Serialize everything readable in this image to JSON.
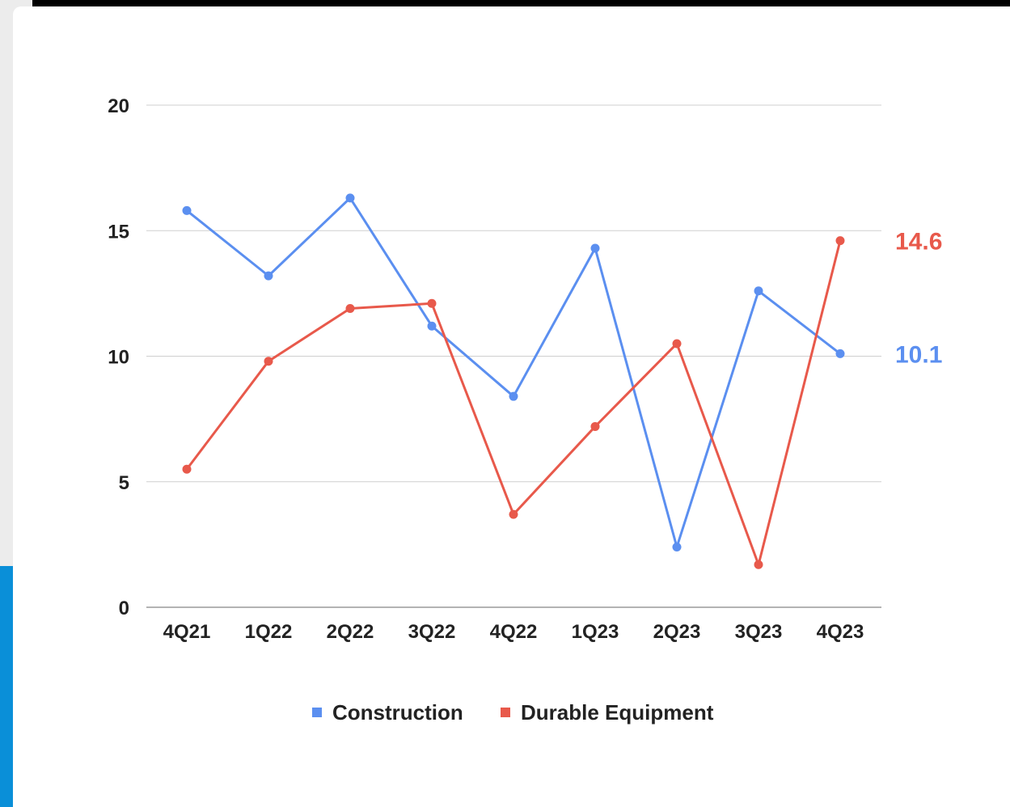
{
  "chart_data": {
    "type": "line",
    "categories": [
      "4Q21",
      "1Q22",
      "2Q22",
      "3Q22",
      "4Q22",
      "1Q23",
      "2Q23",
      "3Q23",
      "4Q23"
    ],
    "ylim": [
      0,
      20
    ],
    "yticks": [
      0,
      5,
      10,
      15,
      20
    ],
    "grid": true,
    "legend_position": "bottom",
    "series": [
      {
        "name": "Construction",
        "color": "#5b8ff0",
        "values": [
          15.8,
          13.2,
          16.3,
          11.2,
          8.4,
          14.3,
          2.4,
          12.6,
          10.1
        ],
        "end_label": "10.1"
      },
      {
        "name": "Durable Equipment",
        "color": "#e8594b",
        "values": [
          5.5,
          9.8,
          11.9,
          12.1,
          3.7,
          7.2,
          10.5,
          1.7,
          14.6
        ],
        "end_label": "14.6"
      }
    ]
  }
}
